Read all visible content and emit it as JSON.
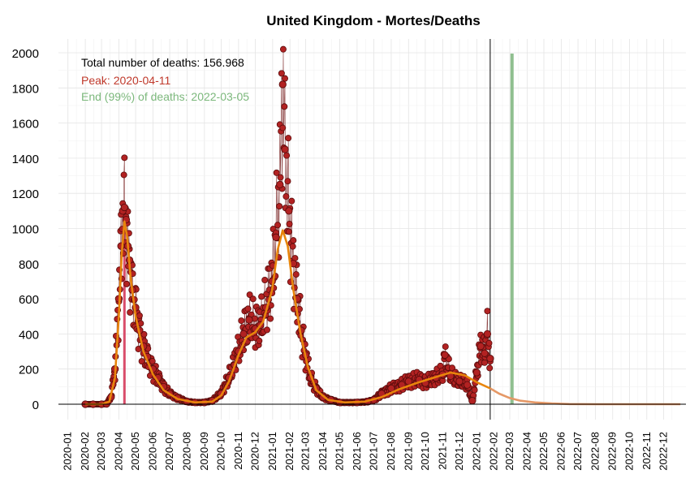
{
  "chart_data": {
    "type": "scatter",
    "title": "United Kingdom - Mortes/Deaths",
    "xlabel": "",
    "ylabel": "",
    "x_range": [
      "2019-12-15",
      "2023-01-10"
    ],
    "ylim": [
      0,
      2000
    ],
    "y_ticks": [
      0,
      200,
      400,
      600,
      800,
      1000,
      1200,
      1400,
      1600,
      1800,
      2000
    ],
    "x_ticks": [
      "2020-01",
      "2020-02",
      "2020-03",
      "2020-04",
      "2020-05",
      "2020-06",
      "2020-07",
      "2020-08",
      "2020-09",
      "2020-10",
      "2020-11",
      "2020-12",
      "2021-01",
      "2021-02",
      "2021-03",
      "2021-04",
      "2021-05",
      "2021-06",
      "2021-07",
      "2021-08",
      "2021-09",
      "2021-10",
      "2021-11",
      "2021-12",
      "2022-01",
      "2022-02",
      "2022-03",
      "2022-04",
      "2022-05",
      "2022-06",
      "2022-07",
      "2022-08",
      "2022-09",
      "2022-10",
      "2022-11",
      "2022-12"
    ],
    "grid": true,
    "annotations": {
      "total": "Total number of deaths: 156.968",
      "peak": "Peak: 2020-04-11",
      "end": "End (99%) of deaths: 2022-03-05"
    },
    "colors": {
      "points": "#b22222",
      "point_edge": "#5a0c0c",
      "smooth": "#e8850c",
      "projection": "#e59866",
      "peak_line": "#d94c6a",
      "end_line": "#8fbf8f",
      "text_total": "#000000",
      "text_peak": "#c0392b",
      "text_end": "#7cb87c"
    },
    "reference_lines": {
      "peak_date": "2020-04-11",
      "current_date": "2022-01-25",
      "end_date": "2022-03-05"
    },
    "daily_deaths_observed": [
      [
        "2020-02-01",
        0
      ],
      [
        "2020-02-15",
        0
      ],
      [
        "2020-03-01",
        0
      ],
      [
        "2020-03-10",
        2
      ],
      [
        "2020-03-18",
        40
      ],
      [
        "2020-03-25",
        200
      ],
      [
        "2020-04-01",
        600
      ],
      [
        "2020-04-05",
        900
      ],
      [
        "2020-04-08",
        1100
      ],
      [
        "2020-04-11",
        1120
      ],
      [
        "2020-04-14",
        1050
      ],
      [
        "2020-04-17",
        900
      ],
      [
        "2020-04-20",
        820
      ],
      [
        "2020-04-25",
        650
      ],
      [
        "2020-05-01",
        550
      ],
      [
        "2020-05-08",
        420
      ],
      [
        "2020-05-15",
        330
      ],
      [
        "2020-05-22",
        270
      ],
      [
        "2020-06-01",
        200
      ],
      [
        "2020-06-10",
        150
      ],
      [
        "2020-06-20",
        100
      ],
      [
        "2020-07-01",
        60
      ],
      [
        "2020-07-15",
        35
      ],
      [
        "2020-08-01",
        15
      ],
      [
        "2020-08-15",
        10
      ],
      [
        "2020-09-01",
        10
      ],
      [
        "2020-09-15",
        20
      ],
      [
        "2020-10-01",
        60
      ],
      [
        "2020-10-15",
        150
      ],
      [
        "2020-11-01",
        300
      ],
      [
        "2020-11-10",
        400
      ],
      [
        "2020-11-20",
        480
      ],
      [
        "2020-12-01",
        430
      ],
      [
        "2020-12-10",
        450
      ],
      [
        "2020-12-20",
        550
      ],
      [
        "2020-12-31",
        700
      ],
      [
        "2021-01-07",
        950
      ],
      [
        "2021-01-14",
        1250
      ],
      [
        "2021-01-19",
        1820
      ],
      [
        "2021-01-23",
        1450
      ],
      [
        "2021-01-30",
        1100
      ],
      [
        "2021-02-07",
        800
      ],
      [
        "2021-02-14",
        600
      ],
      [
        "2021-02-21",
        420
      ],
      [
        "2021-03-01",
        280
      ],
      [
        "2021-03-10",
        150
      ],
      [
        "2021-03-20",
        90
      ],
      [
        "2021-04-01",
        40
      ],
      [
        "2021-04-15",
        25
      ],
      [
        "2021-05-01",
        10
      ],
      [
        "2021-06-01",
        10
      ],
      [
        "2021-06-20",
        15
      ],
      [
        "2021-07-01",
        25
      ],
      [
        "2021-07-15",
        60
      ],
      [
        "2021-08-01",
        90
      ],
      [
        "2021-08-20",
        110
      ],
      [
        "2021-09-01",
        130
      ],
      [
        "2021-09-20",
        140
      ],
      [
        "2021-10-01",
        120
      ],
      [
        "2021-10-20",
        150
      ],
      [
        "2021-11-01",
        170
      ],
      [
        "2021-11-05",
        280
      ],
      [
        "2021-11-15",
        160
      ],
      [
        "2021-12-01",
        130
      ],
      [
        "2021-12-15",
        110
      ],
      [
        "2021-12-24",
        20
      ],
      [
        "2022-01-01",
        180
      ],
      [
        "2022-01-08",
        330
      ],
      [
        "2022-01-15",
        290
      ],
      [
        "2022-01-20",
        400
      ],
      [
        "2022-01-25",
        260
      ]
    ],
    "smoothed_deaths": [
      [
        "2020-02-01",
        0
      ],
      [
        "2020-03-01",
        0
      ],
      [
        "2020-03-15",
        15
      ],
      [
        "2020-03-25",
        150
      ],
      [
        "2020-04-01",
        500
      ],
      [
        "2020-04-06",
        850
      ],
      [
        "2020-04-11",
        1040
      ],
      [
        "2020-04-16",
        950
      ],
      [
        "2020-04-22",
        720
      ],
      [
        "2020-05-01",
        500
      ],
      [
        "2020-05-15",
        300
      ],
      [
        "2020-06-01",
        170
      ],
      [
        "2020-06-20",
        80
      ],
      [
        "2020-07-15",
        30
      ],
      [
        "2020-08-15",
        10
      ],
      [
        "2020-09-15",
        15
      ],
      [
        "2020-10-01",
        50
      ],
      [
        "2020-10-15",
        130
      ],
      [
        "2020-11-01",
        280
      ],
      [
        "2020-11-15",
        380
      ],
      [
        "2020-12-01",
        410
      ],
      [
        "2020-12-15",
        470
      ],
      [
        "2020-12-31",
        650
      ],
      [
        "2021-01-10",
        880
      ],
      [
        "2021-01-19",
        990
      ],
      [
        "2021-01-28",
        900
      ],
      [
        "2021-02-07",
        650
      ],
      [
        "2021-02-20",
        400
      ],
      [
        "2021-03-05",
        210
      ],
      [
        "2021-03-20",
        80
      ],
      [
        "2021-04-10",
        25
      ],
      [
        "2021-05-10",
        10
      ],
      [
        "2021-06-15",
        15
      ],
      [
        "2021-07-15",
        40
      ],
      [
        "2021-08-15",
        85
      ],
      [
        "2021-09-15",
        120
      ],
      [
        "2021-10-15",
        150
      ],
      [
        "2021-11-15",
        180
      ],
      [
        "2021-12-10",
        165
      ],
      [
        "2022-01-01",
        125
      ],
      [
        "2022-01-25",
        90
      ]
    ],
    "projected_deaths": [
      [
        "2022-01-25",
        90
      ],
      [
        "2022-02-10",
        60
      ],
      [
        "2022-03-01",
        35
      ],
      [
        "2022-03-20",
        20
      ],
      [
        "2022-04-15",
        10
      ],
      [
        "2022-05-15",
        4
      ],
      [
        "2022-06-15",
        1
      ],
      [
        "2022-08-01",
        0
      ],
      [
        "2022-10-01",
        0
      ],
      [
        "2022-12-31",
        0
      ]
    ]
  }
}
